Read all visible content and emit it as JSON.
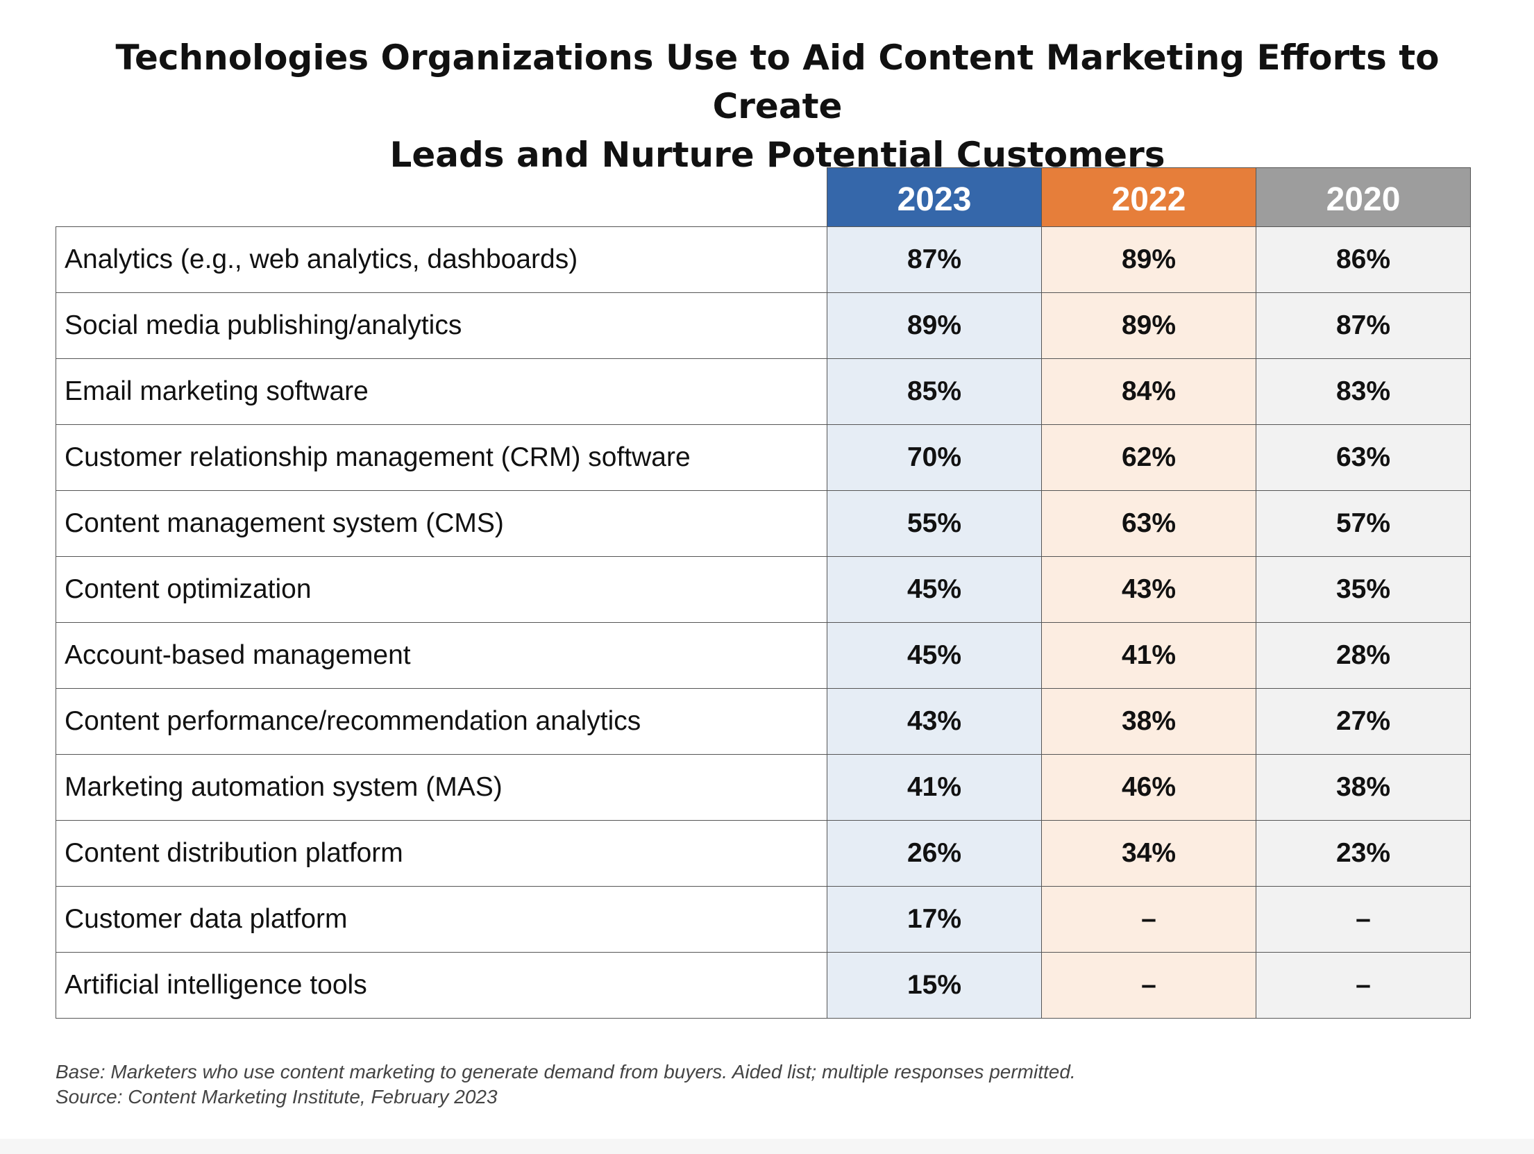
{
  "chart_data": {
    "type": "table",
    "title_lines": [
      "Technologies Organizations Use to Aid Content Marketing Efforts to Create",
      "Leads and Nurture Potential Customers"
    ],
    "columns": [
      {
        "label": "2023",
        "header_color": "#3567aa",
        "cell_color": "#e6edf5"
      },
      {
        "label": "2022",
        "header_color": "#e67e3a",
        "cell_color": "#fcede1"
      },
      {
        "label": "2020",
        "header_color": "#9d9d9d",
        "cell_color": "#f2f2f2"
      }
    ],
    "rows": [
      {
        "label": "Analytics (e.g., web analytics, dashboards)",
        "values": [
          "87%",
          "89%",
          "86%"
        ]
      },
      {
        "label": "Social media publishing/analytics",
        "values": [
          "89%",
          "89%",
          "87%"
        ]
      },
      {
        "label": "Email marketing software",
        "values": [
          "85%",
          "84%",
          "83%"
        ]
      },
      {
        "label": "Customer relationship management (CRM) software",
        "values": [
          "70%",
          "62%",
          "63%"
        ]
      },
      {
        "label": "Content management system (CMS)",
        "values": [
          "55%",
          "63%",
          "57%"
        ]
      },
      {
        "label": "Content optimization",
        "values": [
          "45%",
          "43%",
          "35%"
        ]
      },
      {
        "label": "Account-based management",
        "values": [
          "45%",
          "41%",
          "28%"
        ]
      },
      {
        "label": "Content performance/recommendation analytics",
        "values": [
          "43%",
          "38%",
          "27%"
        ]
      },
      {
        "label": "Marketing automation system (MAS)",
        "values": [
          "41%",
          "46%",
          "38%"
        ]
      },
      {
        "label": "Content distribution platform",
        "values": [
          "26%",
          "34%",
          "23%"
        ]
      },
      {
        "label": "Customer data platform",
        "values": [
          "17%",
          "–",
          "–"
        ]
      },
      {
        "label": "Artificial intelligence tools",
        "values": [
          "15%",
          "–",
          "–"
        ]
      }
    ],
    "footnotes": [
      "Base: Marketers who use content marketing to generate demand from buyers. Aided list; multiple responses permitted.",
      "Source: Content Marketing Institute, February 2023"
    ]
  }
}
